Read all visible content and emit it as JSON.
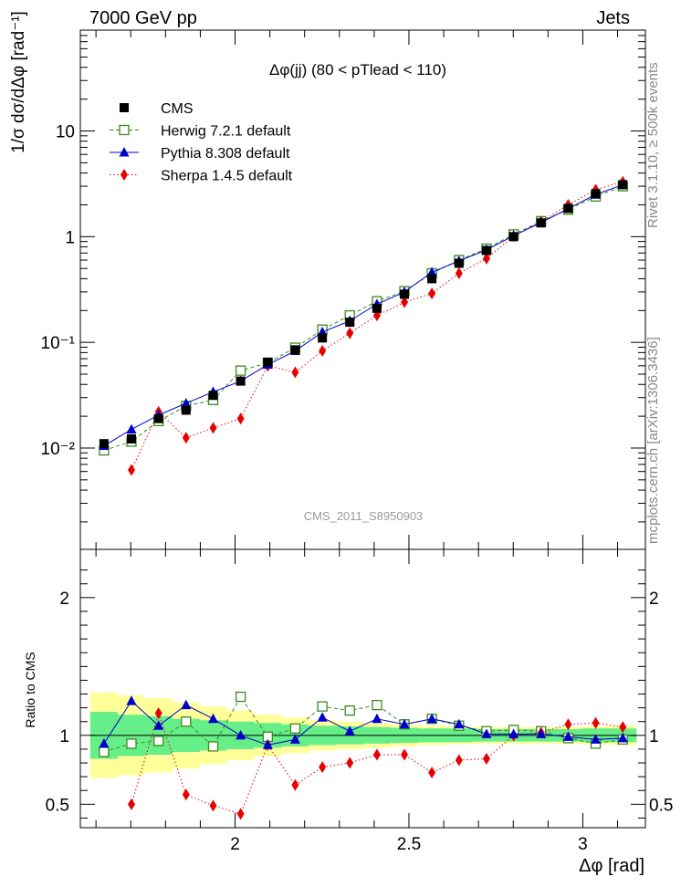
{
  "header": {
    "left": "7000 GeV pp",
    "right": "Jets"
  },
  "side_text": {
    "rivet": "Rivet 3.1.10, ≥ 500k events",
    "mcplots": "mcplots.cern.ch [arXiv:1306.3436]"
  },
  "plot": {
    "title": "Δφ(jj) (80 < pTlead < 110)",
    "watermark": "CMS_2011_S8950903",
    "ylabel_main": "1/σ dσ/dΔφ [rad⁻¹]",
    "ylabel_ratio": "Ratio to CMS",
    "xlabel": "Δφ [rad]"
  },
  "legend": [
    {
      "label": "CMS",
      "color": "#000000",
      "marker": "square-filled",
      "line": "none"
    },
    {
      "label": "Herwig 7.2.1 default",
      "color": "#3a8a1e",
      "marker": "square-open",
      "line": "dashed"
    },
    {
      "label": "Pythia 8.308 default",
      "color": "#0000cc",
      "marker": "triangle-filled",
      "line": "solid"
    },
    {
      "label": "Sherpa 1.4.5 default",
      "color": "#e80000",
      "marker": "diamond-filled",
      "line": "dotted"
    }
  ],
  "chart_data": [
    {
      "type": "scatter",
      "title": "Δφ(jj) (80 < pTlead < 110)",
      "xlabel": "Δφ [rad]",
      "ylabel": "1/σ dσ/dΔφ [rad⁻¹]",
      "yscale": "log",
      "xlim": [
        1.555,
        3.18
      ],
      "ylim": [
        0.0011,
        90
      ],
      "x_ticks": [
        "2",
        "2.5",
        "3"
      ],
      "x_tick_values": [
        2.0,
        2.5,
        3.0
      ],
      "y_ticks": [
        "10⁻²",
        "10⁻¹",
        "1",
        "10"
      ],
      "y_tick_values": [
        0.01,
        0.1,
        1,
        10
      ],
      "x": [
        1.623,
        1.702,
        1.78,
        1.859,
        1.937,
        2.016,
        2.094,
        2.173,
        2.251,
        2.33,
        2.408,
        2.487,
        2.566,
        2.644,
        2.723,
        2.801,
        2.88,
        2.958,
        3.037,
        3.115
      ],
      "series": [
        {
          "name": "CMS",
          "values": [
            0.011,
            0.0122,
            0.019,
            0.0228,
            0.0315,
            0.043,
            0.065,
            0.085,
            0.11,
            0.155,
            0.21,
            0.285,
            0.4,
            0.56,
            0.74,
            1.0,
            1.35,
            1.85,
            2.55,
            3.1
          ]
        },
        {
          "name": "Herwig 7.2.1 default",
          "values": [
            0.0095,
            0.0115,
            0.018,
            0.025,
            0.0285,
            0.054,
            0.064,
            0.089,
            0.132,
            0.18,
            0.245,
            0.305,
            0.45,
            0.6,
            0.77,
            1.05,
            1.4,
            1.8,
            2.4,
            3.0
          ]
        },
        {
          "name": "Pythia 8.308 default",
          "values": [
            0.0105,
            0.015,
            0.0205,
            0.0265,
            0.034,
            0.043,
            0.0615,
            0.083,
            0.125,
            0.16,
            0.23,
            0.3,
            0.46,
            0.59,
            0.75,
            1.02,
            1.36,
            1.84,
            2.5,
            3.1
          ]
        },
        {
          "name": "Sherpa 1.4.5 default",
          "values": [
            null,
            0.0062,
            0.022,
            0.0125,
            0.0155,
            0.019,
            0.06,
            0.052,
            0.083,
            0.122,
            0.18,
            0.24,
            0.29,
            0.45,
            0.62,
            1.01,
            1.39,
            2.0,
            2.78,
            3.3
          ]
        }
      ]
    },
    {
      "type": "line",
      "title": "",
      "xlabel": "Δφ [rad]",
      "ylabel": "Ratio to CMS",
      "xlim": [
        1.555,
        3.18
      ],
      "ylim": [
        0.33,
        2.35
      ],
      "x_ticks": [
        "2",
        "2.5",
        "3"
      ],
      "x_tick_values": [
        2.0,
        2.5,
        3.0
      ],
      "y_ticks": [
        "0.5",
        "1",
        "2"
      ],
      "y_tick_values": [
        0.5,
        1,
        2
      ],
      "x": [
        1.623,
        1.702,
        1.78,
        1.859,
        1.937,
        2.016,
        2.094,
        2.173,
        2.251,
        2.33,
        2.408,
        2.487,
        2.566,
        2.644,
        2.723,
        2.801,
        2.88,
        2.958,
        3.037,
        3.115
      ],
      "band_green_halfwidth": [
        0.17,
        0.15,
        0.14,
        0.12,
        0.11,
        0.1,
        0.09,
        0.08,
        0.07,
        0.065,
        0.06,
        0.055,
        0.05,
        0.05,
        0.045,
        0.045,
        0.045,
        0.045,
        0.05,
        0.05
      ],
      "band_yellow_halfwidth": [
        0.31,
        0.29,
        0.27,
        0.24,
        0.21,
        0.18,
        0.15,
        0.13,
        0.11,
        0.1,
        0.09,
        0.08,
        0.07,
        0.065,
        0.06,
        0.06,
        0.06,
        0.06,
        0.065,
        0.07
      ],
      "series": [
        {
          "name": "Herwig 7.2.1 default",
          "values": [
            0.88,
            0.94,
            0.96,
            1.1,
            0.92,
            1.28,
            0.99,
            1.05,
            1.21,
            1.18,
            1.22,
            1.08,
            1.12,
            1.07,
            1.03,
            1.04,
            1.03,
            0.98,
            0.94,
            0.97
          ]
        },
        {
          "name": "Pythia 8.308 default",
          "values": [
            0.94,
            1.25,
            1.07,
            1.22,
            1.12,
            1.0,
            0.93,
            0.97,
            1.13,
            1.03,
            1.12,
            1.08,
            1.12,
            1.08,
            1.01,
            1.01,
            1.01,
            0.99,
            0.97,
            0.98
          ]
        },
        {
          "name": "Sherpa 1.4.5 default",
          "values": [
            null,
            0.5,
            1.16,
            0.57,
            0.49,
            0.43,
            0.93,
            0.64,
            0.77,
            0.8,
            0.86,
            0.86,
            0.73,
            0.82,
            0.83,
            1.0,
            1.02,
            1.08,
            1.09,
            1.06
          ]
        }
      ]
    }
  ]
}
